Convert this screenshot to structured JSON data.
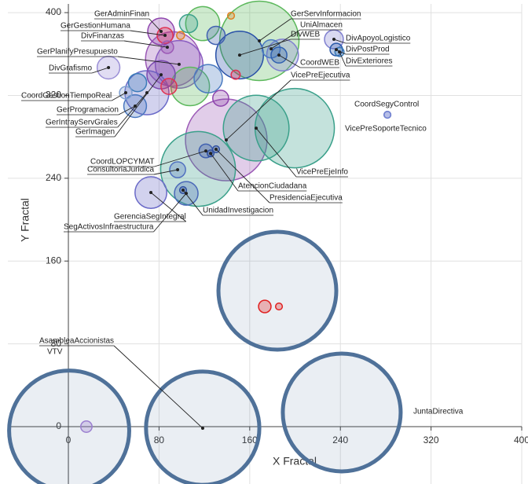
{
  "chart_data": {
    "type": "bubble",
    "xlabel": "X Fractal",
    "ylabel": "Y Fractal",
    "xlim": [
      -53.4,
      400
    ],
    "ylim": [
      -55.4,
      408.4
    ],
    "xticks": [
      0,
      80,
      160,
      240,
      320,
      400
    ],
    "yticks": [
      0,
      80,
      160,
      240,
      320,
      400
    ],
    "grid": true,
    "x": [
      81.8,
      85.3,
      87.3,
      97.7,
      35.4,
      50.6,
      58.9,
      69.3,
      81.8,
      121.3,
      96.4,
      72.8,
      104,
      101.2,
      125.5,
      130.3,
      165.7,
      139.3,
      168.5,
      178.9,
      151.1,
      185.8,
      234.3,
      236.4,
      239.2,
      281.5,
      281.5,
      241.2,
      118.5,
      0.7,
      184.4,
      173.3,
      185.8,
      15.9,
      199.7,
      114.4,
      107.5,
      123.4,
      118.5,
      130.3,
      106,
      92.1,
      134.4,
      147.6,
      143.5,
      99,
      61,
      88.7,
      189
    ],
    "y": [
      381.8,
      378,
      366.6,
      350,
      346.9,
      322.6,
      309.7,
      322.6,
      340,
      266.4,
      248.2,
      226.2,
      225.4,
      228.5,
      264,
      268,
      288.4,
      277,
      372.7,
      365,
      359,
      359,
      374.2,
      364.3,
      362,
      301.3,
      301.3,
      13.7,
      -1.5,
      -3.8,
      131.3,
      116.1,
      116.1,
      0,
      288.4,
      249,
      328.7,
      336.2,
      389.4,
      378,
      389.4,
      355.2,
      317.3,
      340,
      397,
      378,
      332.4,
      328.7,
      359
    ],
    "sizes": [
      11.8,
      7,
      5.5,
      21,
      10,
      5.5,
      10,
      19.4,
      12.5,
      6,
      7,
      14,
      10.4,
      3,
      3,
      3,
      29,
      36,
      35,
      8,
      21,
      7,
      8.3,
      5.5,
      4,
      3,
      3,
      52,
      50,
      53,
      52,
      5.5,
      3,
      5,
      35,
      33,
      17,
      12.5,
      15,
      8,
      8,
      24,
      7,
      4,
      3,
      3.5,
      8,
      7,
      14
    ],
    "colors": [
      "#8e44ad",
      "#e03050",
      "#9b59b6",
      "#8a5cc0",
      "#9b8fd6",
      "#7fa0d0",
      "#4a78c0",
      "#6a6ac8",
      "#7a4ab0",
      "#4060b0",
      "#5070c0",
      "#6a6ac8",
      "#4a68b8",
      "#3050a0",
      "#3050a0",
      "#3050a0",
      "#3aa08a",
      "#9b59b6",
      "#5cb85c",
      "#4a7ac0",
      "#2850a8",
      "#3060b0",
      "#8080d0",
      "#2858a8",
      "#3a7ab8",
      "#7080d0",
      "#7080d0",
      "#4f7199",
      "#4f7199",
      "#4f7199",
      "#4f7199",
      "#e02020",
      "#e02020",
      "#9b7fd0",
      "#3aa08a",
      "#3aa08a",
      "#5cb85c",
      "#4a7ac0",
      "#5cb85c",
      "#4060b0",
      "#3aa08a",
      "#9b59b6",
      "#8e44ad",
      "#e03050",
      "#e08020",
      "#e08020",
      "#3a7ab8",
      "#e03050",
      "#8080d0"
    ],
    "labels": [
      "GerAdminFinan",
      "GerGestionHumana",
      "DivFinanzas",
      "GerPlanifyPresupuesto",
      "DivGrafismo",
      "CoordGestionTiempoReal",
      "GerProgramacion",
      "GerIntrayServGrales",
      "GerImagen",
      "CoordLOPCYMAT",
      "ConsultoriaJuridica",
      "GerenciaSegIntegral",
      "SegActivosInfraestructura",
      "UnidadInvestigacion",
      "AtencionCiudadana",
      "PresidenciaEjecutiva",
      "VicePreEjeInfo",
      "VicePreEjecutiva",
      "GerServInformacion",
      "UniAlmacen",
      "DivWEB",
      "CoordWEB",
      "DivApoyoLogistico",
      "DivPostProd",
      "DivExteriores",
      "CoordSegyControl",
      "VicePreSoporteTecnico",
      "JuntaDirectiva",
      "AsambleaAccionistas",
      "VTV",
      null,
      null,
      null,
      null,
      null,
      null,
      null,
      null,
      null,
      null,
      null,
      null,
      null,
      null,
      null,
      null,
      null,
      null,
      null
    ]
  }
}
